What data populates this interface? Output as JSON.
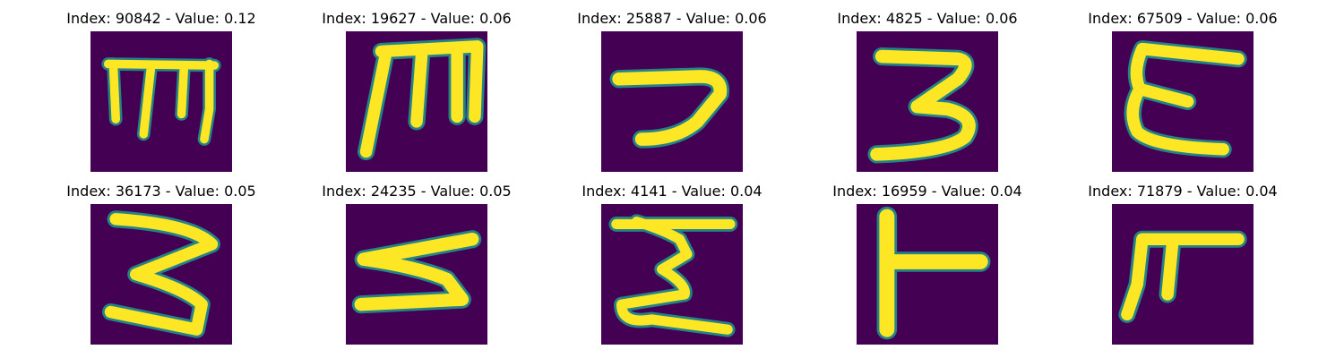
{
  "figure": {
    "background_color": "#ffffff",
    "colormap": [
      "#440154",
      "#3b528b",
      "#21918c",
      "#5ec962",
      "#fde725"
    ],
    "panels": [
      {
        "index": 90842,
        "value": 0.12,
        "title": "Index: 90842 - Value: 0.12",
        "glyph": "m"
      },
      {
        "index": 19627,
        "value": 0.06,
        "title": "Index: 19627 - Value: 0.06",
        "glyph": "m"
      },
      {
        "index": 25887,
        "value": 0.06,
        "title": "Index: 25887 - Value: 0.06",
        "glyph": "seven"
      },
      {
        "index": 4825,
        "value": 0.06,
        "title": "Index: 4825 - Value: 0.06",
        "glyph": "three"
      },
      {
        "index": 67509,
        "value": 0.06,
        "title": "Index: 67509 - Value: 0.06",
        "glyph": "epsilon"
      },
      {
        "index": 36173,
        "value": 0.05,
        "title": "Index: 36173 - Value: 0.05",
        "glyph": "three"
      },
      {
        "index": 24235,
        "value": 0.05,
        "title": "Index: 24235 - Value: 0.05",
        "glyph": "five"
      },
      {
        "index": 4141,
        "value": 0.04,
        "title": "Index: 4141 - Value: 0.04",
        "glyph": "sigma"
      },
      {
        "index": 16959,
        "value": 0.04,
        "title": "Index: 16959 - Value: 0.04",
        "glyph": "t-bar"
      },
      {
        "index": 71879,
        "value": 0.04,
        "title": "Index: 71879 - Value: 0.04",
        "glyph": "pi"
      }
    ]
  }
}
